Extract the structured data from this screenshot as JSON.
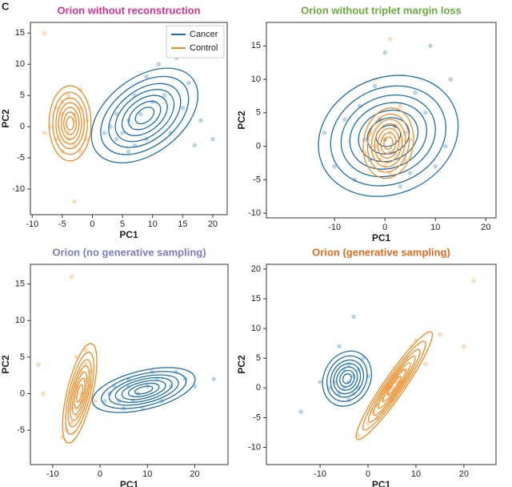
{
  "panel_label": "C",
  "chart_data": [
    {
      "type": "scatter",
      "title": "Orion without reconstruction",
      "title_color": "#d6308f",
      "x_label": "PC1",
      "y_label": "PC2",
      "xlim": [
        -10.3,
        22.4
      ],
      "ylim": [
        -14.1,
        16.7
      ],
      "xticks": [
        -10,
        -5,
        0,
        5,
        10,
        15,
        20
      ],
      "yticks": [
        -10,
        -5,
        0,
        5,
        10,
        15
      ],
      "legend": "upper right",
      "series": [
        {
          "name": "Cancer",
          "color": "#1f6fa8",
          "x": [
            4,
            5,
            3,
            6,
            7,
            8,
            10,
            12,
            15,
            18,
            20,
            9,
            11,
            14,
            6,
            2,
            13,
            16,
            7,
            4,
            9,
            17
          ],
          "values": [
            -2,
            -1,
            0,
            1,
            -3,
            2,
            4,
            5,
            3,
            1,
            -2,
            8,
            10,
            11,
            -4,
            -1,
            -1,
            7,
            5,
            2,
            -2,
            -3
          ]
        },
        {
          "name": "Control",
          "color": "#f08a24",
          "x": [
            -8,
            -3,
            -5,
            -4,
            -3,
            -2,
            -6,
            -5,
            -1,
            -4,
            -2,
            -7,
            -3,
            -1,
            -5,
            -6,
            -2,
            -4,
            -3,
            -8
          ],
          "values": [
            15,
            -12,
            2,
            -1,
            1,
            3,
            -2,
            4,
            -2,
            5,
            -4,
            0,
            -3,
            1,
            -4,
            3,
            6,
            -2,
            2,
            -1
          ]
        }
      ]
    },
    {
      "type": "scatter",
      "title": "Orion without triplet margin loss",
      "title_color": "#6aab3c",
      "x_label": "PC1",
      "y_label": "PC2",
      "xlim": [
        -23.5,
        22
      ],
      "ylim": [
        -10.7,
        18.5
      ],
      "xticks": [
        -10,
        0,
        10,
        20
      ],
      "yticks": [
        -10,
        -5,
        0,
        5,
        10,
        15
      ],
      "series": [
        {
          "color": "#1f6fa8",
          "x": [
            -12,
            -8,
            -5,
            -3,
            0,
            2,
            5,
            8,
            10,
            13,
            -10,
            -2,
            3,
            6,
            12,
            -6,
            0,
            9,
            1,
            -1,
            4,
            -4
          ],
          "values": [
            2,
            4,
            6,
            -2,
            1,
            3,
            -4,
            5,
            -3,
            10,
            -3,
            9,
            -6,
            8,
            0,
            -5,
            14,
            15,
            -1,
            4,
            2,
            1
          ]
        },
        {
          "color": "#f08a24",
          "x": [
            -2,
            0,
            2,
            1,
            -1,
            3,
            -3,
            0,
            4,
            2,
            -4,
            1,
            5,
            -1,
            1,
            3
          ],
          "values": [
            0,
            1,
            -1,
            2,
            -2,
            1,
            2,
            -3,
            -2,
            3,
            -1,
            -4,
            1,
            4,
            16,
            6
          ]
        }
      ]
    },
    {
      "type": "scatter",
      "title": "Orion (no generative sampling)",
      "title_color": "#7b7fc0",
      "x_label": "PC1",
      "y_label": "PC2",
      "xlim": [
        -14.7,
        27
      ],
      "ylim": [
        -9.7,
        17.7
      ],
      "xticks": [
        -10,
        0,
        10,
        20
      ],
      "yticks": [
        -5,
        0,
        5,
        10,
        15
      ],
      "series": [
        {
          "color": "#1f6fa8",
          "x": [
            2,
            4,
            6,
            3,
            5,
            8,
            10,
            12,
            15,
            18,
            20,
            24,
            7,
            9,
            13,
            1,
            6,
            11,
            16
          ],
          "values": [
            0,
            -1,
            1,
            1,
            -2,
            0,
            1,
            2,
            1,
            2,
            1,
            2,
            -1,
            -2,
            -1,
            -1,
            2,
            3,
            3
          ]
        },
        {
          "color": "#f08a24",
          "x": [
            -5,
            -4,
            -3,
            -4,
            -5,
            -6,
            -7,
            -3,
            -2,
            -5,
            -4,
            -6,
            -3,
            -2,
            -6,
            -13,
            -12,
            -8,
            -5,
            -1
          ],
          "values": [
            5,
            3,
            2,
            0,
            -2,
            -4,
            -5,
            4,
            1,
            1,
            -1,
            -2,
            6,
            3,
            16,
            4,
            0,
            -6,
            -3,
            -1
          ]
        }
      ]
    },
    {
      "type": "scatter",
      "title": "Orion (generative sampling)",
      "title_color": "#e06c22",
      "x_label": "PC1",
      "y_label": "PC2",
      "xlim": [
        -21.2,
        26.7
      ],
      "ylim": [
        -12.9,
        20.8
      ],
      "xticks": [
        -10,
        0,
        10,
        20
      ],
      "yticks": [
        -10,
        -5,
        0,
        5,
        10,
        15,
        20
      ],
      "series": [
        {
          "color": "#1f6fa8",
          "x": [
            -4,
            -5,
            -3,
            -6,
            -2,
            -7,
            -4,
            -3,
            -8,
            -5,
            -2,
            -1,
            -3,
            -14,
            -10,
            -6,
            -4,
            0
          ],
          "values": [
            1,
            0,
            2,
            -1,
            3,
            1,
            4,
            -1,
            0,
            3,
            0,
            5,
            12,
            -4,
            1,
            7,
            -2,
            2
          ]
        },
        {
          "color": "#f08a24",
          "x": [
            0,
            1,
            2,
            3,
            4,
            5,
            6,
            7,
            8,
            9,
            10,
            2,
            5,
            6,
            3,
            8,
            -2,
            12,
            15,
            22,
            20,
            4,
            7
          ],
          "values": [
            -6,
            -4,
            -3,
            -2,
            -1,
            0,
            2,
            3,
            5,
            7,
            8,
            -5,
            -2,
            1,
            -4,
            3,
            -8,
            4,
            9,
            18,
            7,
            0,
            1
          ]
        }
      ]
    }
  ]
}
